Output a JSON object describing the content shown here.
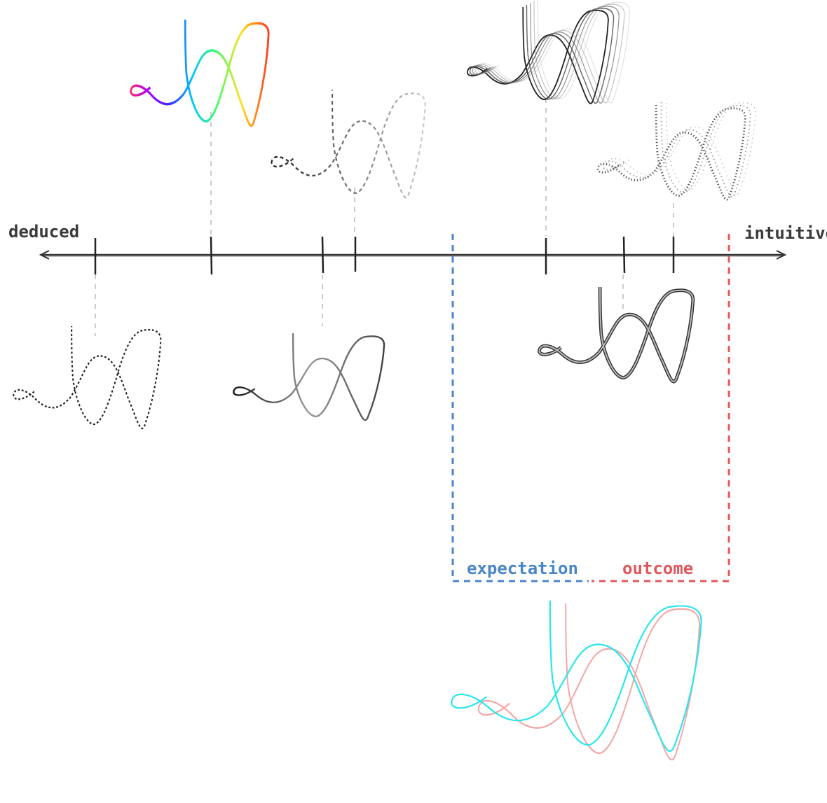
{
  "axis": {
    "left_label": "deduced",
    "right_label": "intuitive"
  },
  "legend": {
    "expectation_label": "expectation",
    "outcome_label": "outcome",
    "expectation_color": "#4a86c8",
    "outcome_color": "#e0575b"
  },
  "styles": {
    "axis_color": "#333333",
    "leader_color": "#cccccc",
    "rainbow_colors": [
      "#ff2a6d",
      "#b000ff",
      "#3a2cff",
      "#00c8ff",
      "#3cff6e",
      "#ffe11a",
      "#ff3b1f"
    ],
    "overlay_colors": [
      "#29e6ee",
      "#f4a6a6"
    ]
  },
  "icons": {
    "loop_curve": "loop-squiggle-icon"
  }
}
